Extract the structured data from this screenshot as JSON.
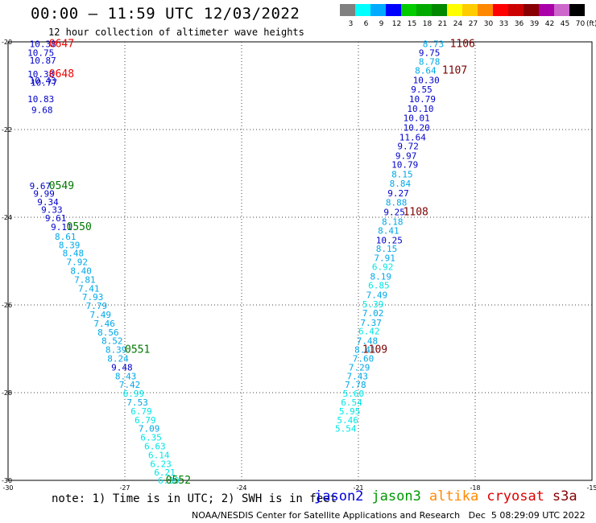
{
  "header": {
    "title": "00:00 – 11:59 UTC 12/03/2022",
    "subtitle": "12 hour collection of altimeter wave heights"
  },
  "legend": {
    "unit": "(ft)",
    "bins": [
      {
        "label": "3",
        "color": "#808080"
      },
      {
        "label": "6",
        "color": "#00ffff"
      },
      {
        "label": "9",
        "color": "#00aaff"
      },
      {
        "label": "12",
        "color": "#0000ff"
      },
      {
        "label": "15",
        "color": "#00cc00"
      },
      {
        "label": "18",
        "color": "#00aa00"
      },
      {
        "label": "21",
        "color": "#008800"
      },
      {
        "label": "24",
        "color": "#ffff00"
      },
      {
        "label": "27",
        "color": "#ffcc00"
      },
      {
        "label": "30",
        "color": "#ff8800"
      },
      {
        "label": "33",
        "color": "#ff0000"
      },
      {
        "label": "36",
        "color": "#cc0000"
      },
      {
        "label": "39",
        "color": "#880000"
      },
      {
        "label": "42",
        "color": "#aa00aa"
      },
      {
        "label": "45",
        "color": "#cc66cc"
      },
      {
        "label": "70",
        "color": "#000000"
      }
    ]
  },
  "chart_data": {
    "type": "scatter",
    "xlim": [
      -30,
      -15
    ],
    "ylim": [
      -30,
      -20
    ],
    "xticks": [
      "-30",
      "-27",
      "-24",
      "-21",
      "-18",
      "-15"
    ],
    "yticks": [
      "-20",
      "-22",
      "-24",
      "-26",
      "-28",
      "-30"
    ],
    "grid": true,
    "colors": {
      "c3": "#00e5e5",
      "c6": "#00a8e8",
      "c9": "#0000cc",
      "time_dark": "#7a0000",
      "time_red": "#ee0000",
      "time_green": "#007700"
    },
    "track_left": [
      {
        "t": "10.38",
        "x": -29.45,
        "y": -20.05,
        "c": "c9"
      },
      {
        "t": "10.75",
        "x": -29.5,
        "y": -20.25,
        "c": "c9"
      },
      {
        "t": "10.87",
        "x": -29.45,
        "y": -20.42,
        "c": "c9"
      },
      {
        "t": "10.38",
        "x": -29.5,
        "y": -20.73,
        "c": "c9"
      },
      {
        "t": "10.43",
        "x": -29.45,
        "y": -20.88,
        "c": "c9"
      },
      {
        "t": "10.77",
        "x": -29.42,
        "y": -20.93,
        "c": "c9"
      },
      {
        "t": "10.83",
        "x": -29.5,
        "y": -21.3,
        "c": "c9"
      },
      {
        "t": "9.68",
        "x": -29.4,
        "y": -21.55,
        "c": "c9"
      },
      {
        "t": "9.67",
        "x": -29.45,
        "y": -23.28,
        "c": "c9"
      },
      {
        "t": "9.99",
        "x": -29.35,
        "y": -23.46,
        "c": "c9"
      },
      {
        "t": "9.34",
        "x": -29.25,
        "y": -23.65,
        "c": "c9"
      },
      {
        "t": "9.33",
        "x": -29.15,
        "y": -23.83,
        "c": "c9"
      },
      {
        "t": "9.61",
        "x": -29.05,
        "y": -24.02,
        "c": "c9"
      },
      {
        "t": "9.11",
        "x": -28.9,
        "y": -24.22,
        "c": "c9"
      },
      {
        "t": "8.61",
        "x": -28.8,
        "y": -24.44,
        "c": "c6"
      },
      {
        "t": "8.39",
        "x": -28.7,
        "y": -24.63,
        "c": "c6"
      },
      {
        "t": "8.48",
        "x": -28.6,
        "y": -24.82,
        "c": "c6"
      },
      {
        "t": "7.92",
        "x": -28.5,
        "y": -25.02,
        "c": "c6"
      },
      {
        "t": "8.40",
        "x": -28.4,
        "y": -25.22,
        "c": "c6"
      },
      {
        "t": "7.81",
        "x": -28.3,
        "y": -25.42,
        "c": "c6"
      },
      {
        "t": "7.41",
        "x": -28.2,
        "y": -25.62,
        "c": "c6"
      },
      {
        "t": "7.93",
        "x": -28.1,
        "y": -25.82,
        "c": "c6"
      },
      {
        "t": "7.79",
        "x": -28.0,
        "y": -26.02,
        "c": "c6"
      },
      {
        "t": "7.49",
        "x": -27.9,
        "y": -26.22,
        "c": "c6"
      },
      {
        "t": "7.46",
        "x": -27.8,
        "y": -26.42,
        "c": "c6"
      },
      {
        "t": "8.56",
        "x": -27.7,
        "y": -26.62,
        "c": "c6"
      },
      {
        "t": "8.52",
        "x": -27.6,
        "y": -26.82,
        "c": "c6"
      },
      {
        "t": "8.39",
        "x": -27.5,
        "y": -27.02,
        "c": "c6"
      },
      {
        "t": "8.24",
        "x": -27.45,
        "y": -27.22,
        "c": "c6"
      },
      {
        "t": "9.48",
        "x": -27.35,
        "y": -27.42,
        "c": "c9"
      },
      {
        "t": "8.43",
        "x": -27.25,
        "y": -27.62,
        "c": "c6"
      },
      {
        "t": "7.42",
        "x": -27.15,
        "y": -27.82,
        "c": "c6"
      },
      {
        "t": "6.99",
        "x": -27.05,
        "y": -28.02,
        "c": "c3"
      },
      {
        "t": "7.53",
        "x": -26.95,
        "y": -28.22,
        "c": "c6"
      },
      {
        "t": "6.79",
        "x": -26.85,
        "y": -28.42,
        "c": "c3"
      },
      {
        "t": "6.79",
        "x": -26.75,
        "y": -28.62,
        "c": "c3"
      },
      {
        "t": "7.09",
        "x": -26.65,
        "y": -28.82,
        "c": "c6"
      },
      {
        "t": "6.35",
        "x": -26.6,
        "y": -29.02,
        "c": "c3"
      },
      {
        "t": "6.63",
        "x": -26.5,
        "y": -29.22,
        "c": "c3"
      },
      {
        "t": "6.14",
        "x": -26.4,
        "y": -29.42,
        "c": "c3"
      },
      {
        "t": "6.23",
        "x": -26.35,
        "y": -29.62,
        "c": "c3"
      },
      {
        "t": "6.21",
        "x": -26.25,
        "y": -29.82,
        "c": "c3"
      },
      {
        "t": "6.30",
        "x": -26.15,
        "y": -30.0,
        "c": "c3"
      }
    ],
    "track_right": [
      {
        "t": "8.73",
        "x": -19.35,
        "y": -20.05,
        "c": "c6"
      },
      {
        "t": "9.75",
        "x": -19.45,
        "y": -20.25,
        "c": "c9"
      },
      {
        "t": "8.78",
        "x": -19.45,
        "y": -20.45,
        "c": "c6"
      },
      {
        "t": "8.64",
        "x": -19.55,
        "y": -20.65,
        "c": "c6"
      },
      {
        "t": "10.30",
        "x": -19.6,
        "y": -20.87,
        "c": "c9"
      },
      {
        "t": "9.55",
        "x": -19.65,
        "y": -21.08,
        "c": "c9"
      },
      {
        "t": "10.79",
        "x": -19.7,
        "y": -21.3,
        "c": "c9"
      },
      {
        "t": "10.10",
        "x": -19.75,
        "y": -21.52,
        "c": "c9"
      },
      {
        "t": "10.01",
        "x": -19.85,
        "y": -21.73,
        "c": "c9"
      },
      {
        "t": "10.20",
        "x": -19.85,
        "y": -21.95,
        "c": "c9"
      },
      {
        "t": "11.64",
        "x": -19.95,
        "y": -22.17,
        "c": "c9"
      },
      {
        "t": "9.72",
        "x": -20.0,
        "y": -22.38,
        "c": "c9"
      },
      {
        "t": "9.97",
        "x": -20.05,
        "y": -22.6,
        "c": "c9"
      },
      {
        "t": "10.79",
        "x": -20.15,
        "y": -22.8,
        "c": "c9"
      },
      {
        "t": "8.15",
        "x": -20.15,
        "y": -23.02,
        "c": "c6"
      },
      {
        "t": "8.84",
        "x": -20.2,
        "y": -23.23,
        "c": "c6"
      },
      {
        "t": "9.27",
        "x": -20.25,
        "y": -23.45,
        "c": "c9"
      },
      {
        "t": "8.88",
        "x": -20.3,
        "y": -23.66,
        "c": "c6"
      },
      {
        "t": "9.25",
        "x": -20.35,
        "y": -23.88,
        "c": "c9"
      },
      {
        "t": "8.18",
        "x": -20.4,
        "y": -24.1,
        "c": "c6"
      },
      {
        "t": "8.41",
        "x": -20.5,
        "y": -24.3,
        "c": "c6"
      },
      {
        "t": "10.25",
        "x": -20.55,
        "y": -24.52,
        "c": "c9"
      },
      {
        "t": "8.15",
        "x": -20.55,
        "y": -24.72,
        "c": "c6"
      },
      {
        "t": "7.91",
        "x": -20.6,
        "y": -24.93,
        "c": "c6"
      },
      {
        "t": "6.92",
        "x": -20.65,
        "y": -25.13,
        "c": "c3"
      },
      {
        "t": "8.19",
        "x": -20.7,
        "y": -25.35,
        "c": "c6"
      },
      {
        "t": "6.85",
        "x": -20.75,
        "y": -25.55,
        "c": "c3"
      },
      {
        "t": "7.49",
        "x": -20.8,
        "y": -25.77,
        "c": "c6"
      },
      {
        "t": "5.39",
        "x": -20.9,
        "y": -25.98,
        "c": "c3"
      },
      {
        "t": "7.02",
        "x": -20.9,
        "y": -26.18,
        "c": "c6"
      },
      {
        "t": "7.37",
        "x": -20.95,
        "y": -26.4,
        "c": "c6"
      },
      {
        "t": "6.42",
        "x": -21.0,
        "y": -26.6,
        "c": "c3"
      },
      {
        "t": "7.48",
        "x": -21.05,
        "y": -26.82,
        "c": "c6"
      },
      {
        "t": "8.41",
        "x": -21.1,
        "y": -27.02,
        "c": "c6"
      },
      {
        "t": "7.60",
        "x": -21.15,
        "y": -27.22,
        "c": "c6"
      },
      {
        "t": "7.29",
        "x": -21.25,
        "y": -27.42,
        "c": "c6"
      },
      {
        "t": "7.43",
        "x": -21.3,
        "y": -27.62,
        "c": "c6"
      },
      {
        "t": "7.78",
        "x": -21.35,
        "y": -27.82,
        "c": "c6"
      },
      {
        "t": "5.60",
        "x": -21.4,
        "y": -28.02,
        "c": "c3"
      },
      {
        "t": "6.54",
        "x": -21.45,
        "y": -28.22,
        "c": "c3"
      },
      {
        "t": "5.95",
        "x": -21.5,
        "y": -28.42,
        "c": "c3"
      },
      {
        "t": "5.46",
        "x": -21.55,
        "y": -28.62,
        "c": "c3"
      },
      {
        "t": "5.54",
        "x": -21.6,
        "y": -28.82,
        "c": "c3"
      }
    ],
    "time_labels": [
      {
        "t": "0647",
        "x": -28.95,
        "y": -20.05,
        "c": "time_red"
      },
      {
        "t": "0648",
        "x": -28.95,
        "y": -20.73,
        "c": "time_red"
      },
      {
        "t": "0549",
        "x": -28.95,
        "y": -23.28,
        "c": "time_green"
      },
      {
        "t": "0550",
        "x": -28.5,
        "y": -24.22,
        "c": "time_green"
      },
      {
        "t": "0551",
        "x": -27.0,
        "y": -27.02,
        "c": "time_green"
      },
      {
        "t": "0552",
        "x": -25.95,
        "y": -30.0,
        "c": "time_green"
      },
      {
        "t": "1106",
        "x": -18.65,
        "y": -20.05,
        "c": "time_dark"
      },
      {
        "t": "1107",
        "x": -18.85,
        "y": -20.65,
        "c": "time_dark"
      },
      {
        "t": "1108",
        "x": -19.85,
        "y": -23.88,
        "c": "time_dark"
      },
      {
        "t": "1109",
        "x": -20.9,
        "y": -27.02,
        "c": "time_dark"
      }
    ]
  },
  "footer": {
    "note": "note: 1) Time is in UTC; 2) SWH is in feet",
    "satellites": [
      {
        "name": "jason2",
        "color": "#0000dd"
      },
      {
        "name": "jason3",
        "color": "#009900"
      },
      {
        "name": "altika",
        "color": "#ff8800"
      },
      {
        "name": "cryosat",
        "color": "#dd0000"
      },
      {
        "name": "s3a",
        "color": "#880000"
      }
    ],
    "credit": "NOAA/NESDIS Center for Satellite Applications and Research   Dec  5 08:29:09 UTC 2022"
  }
}
